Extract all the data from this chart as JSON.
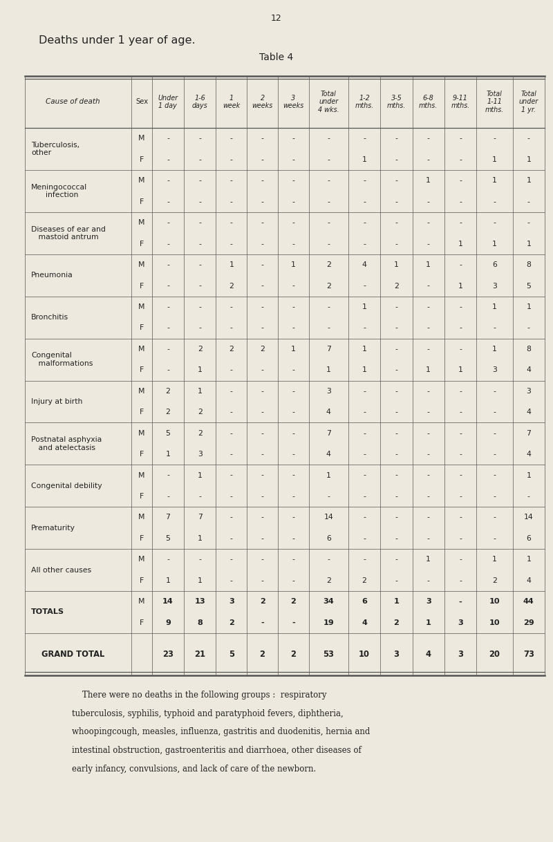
{
  "page_number": "12",
  "title": "Deaths under 1 year of age.",
  "subtitle": "Table 4",
  "background_color": "#ede9df",
  "rows": [
    {
      "cause": "Tuberculosis,\nother",
      "sex_m": [
        "-",
        "-",
        "-",
        "-",
        "-",
        "-",
        "-",
        "-",
        "-",
        "-",
        "-",
        "-"
      ],
      "sex_f": [
        "-",
        "-",
        "-",
        "-",
        "-",
        "-",
        "1",
        "-",
        "-",
        "-",
        "1",
        "1"
      ]
    },
    {
      "cause": "Meningococcal\n      infection",
      "sex_m": [
        "-",
        "-",
        "-",
        "-",
        "-",
        "-",
        "-",
        "-",
        "1",
        "-",
        "1",
        "1"
      ],
      "sex_f": [
        "-",
        "-",
        "-",
        "-",
        "-",
        "-",
        "-",
        "-",
        "-",
        "-",
        "-",
        "-"
      ]
    },
    {
      "cause": "Diseases of ear and\n   mastoid antrum",
      "sex_m": [
        "-",
        "-",
        "-",
        "-",
        "-",
        "-",
        "-",
        "-",
        "-",
        "-",
        "-",
        "-"
      ],
      "sex_f": [
        "-",
        "-",
        "-",
        "-",
        "-",
        "-",
        "-",
        "-",
        "-",
        "1",
        "1",
        "1"
      ]
    },
    {
      "cause": "Pneumonia",
      "sex_m": [
        "-",
        "-",
        "1",
        "-",
        "1",
        "2",
        "4",
        "1",
        "1",
        "-",
        "6",
        "8"
      ],
      "sex_f": [
        "-",
        "-",
        "2",
        "-",
        "-",
        "2",
        "-",
        "2",
        "-",
        "1",
        "3",
        "5"
      ]
    },
    {
      "cause": "Bronchitis",
      "sex_m": [
        "-",
        "-",
        "-",
        "-",
        "-",
        "-",
        "1",
        "-",
        "-",
        "-",
        "1",
        "1"
      ],
      "sex_f": [
        "-",
        "-",
        "-",
        "-",
        "-",
        "-",
        "-",
        "-",
        "-",
        "-",
        "-",
        "-"
      ]
    },
    {
      "cause": "Congenital\n   malformations",
      "sex_m": [
        "-",
        "2",
        "2",
        "2",
        "1",
        "7",
        "1",
        "-",
        "-",
        "-",
        "1",
        "8"
      ],
      "sex_f": [
        "-",
        "1",
        "-",
        "-",
        "-",
        "1",
        "1",
        "-",
        "1",
        "1",
        "3",
        "4"
      ]
    },
    {
      "cause": "Injury at birth",
      "sex_m": [
        "2",
        "1",
        "-",
        "-",
        "-",
        "3",
        "-",
        "-",
        "-",
        "-",
        "-",
        "3"
      ],
      "sex_f": [
        "2",
        "2",
        "-",
        "-",
        "-",
        "4",
        "-",
        "-",
        "-",
        "-",
        "-",
        "4"
      ]
    },
    {
      "cause": "Postnatal asphyxia\n   and atelectasis",
      "sex_m": [
        "5",
        "2",
        "-",
        "-",
        "-",
        "7",
        "-",
        "-",
        "-",
        "-",
        "-",
        "7"
      ],
      "sex_f": [
        "1",
        "3",
        "-",
        "-",
        "-",
        "4",
        "-",
        "-",
        "-",
        "-",
        "-",
        "4"
      ]
    },
    {
      "cause": "Congenital debility",
      "sex_m": [
        "-",
        "1",
        "-",
        "-",
        "-",
        "1",
        "-",
        "-",
        "-",
        "-",
        "-",
        "1"
      ],
      "sex_f": [
        "-",
        "-",
        "-",
        "-",
        "-",
        "-",
        "-",
        "-",
        "-",
        "-",
        "-",
        "-"
      ]
    },
    {
      "cause": "Prematurity",
      "sex_m": [
        "7",
        "7",
        "-",
        "-",
        "-",
        "14",
        "-",
        "-",
        "-",
        "-",
        "-",
        "14"
      ],
      "sex_f": [
        "5",
        "1",
        "-",
        "-",
        "-",
        "6",
        "-",
        "-",
        "-",
        "-",
        "-",
        "6"
      ]
    },
    {
      "cause": "All other causes",
      "sex_m": [
        "-",
        "-",
        "-",
        "-",
        "-",
        "-",
        "-",
        "-",
        "1",
        "-",
        "1",
        "1"
      ],
      "sex_f": [
        "1",
        "1",
        "-",
        "-",
        "-",
        "2",
        "2",
        "-",
        "-",
        "-",
        "2",
        "4"
      ]
    },
    {
      "cause": "TOTALS",
      "sex_m": [
        "14",
        "13",
        "3",
        "2",
        "2",
        "34",
        "6",
        "1",
        "3",
        "-",
        "10",
        "44"
      ],
      "sex_f": [
        "9",
        "8",
        "2",
        "-",
        "-",
        "19",
        "4",
        "2",
        "1",
        "3",
        "10",
        "29"
      ]
    },
    {
      "cause": "GRAND TOTAL",
      "sex_m": null,
      "sex_f": null,
      "grand": [
        "23",
        "21",
        "5",
        "2",
        "2",
        "53",
        "10",
        "3",
        "4",
        "3",
        "20",
        "73"
      ]
    }
  ],
  "footer_lines": [
    "    There were no deaths in the following groups :  respiratory",
    "tuberculosis, syphilis, typhoid and paratyphoid fevers, diphtheria,",
    "whoopingcough, measles, influenza, gastritis and duodenitis, hernia and",
    "intestinal obstruction, gastroenteritis and diarrhoea, other diseases of",
    "early infancy, convulsions, and lack of care of the newborn."
  ],
  "text_color": "#222222",
  "line_color": "#555555",
  "header_fontsize": 7.2,
  "cell_fontsize": 7.8,
  "cause_fontsize": 7.8,
  "title_fontsize": 11.5,
  "subtitle_fontsize": 10.0,
  "footer_fontsize": 8.5
}
